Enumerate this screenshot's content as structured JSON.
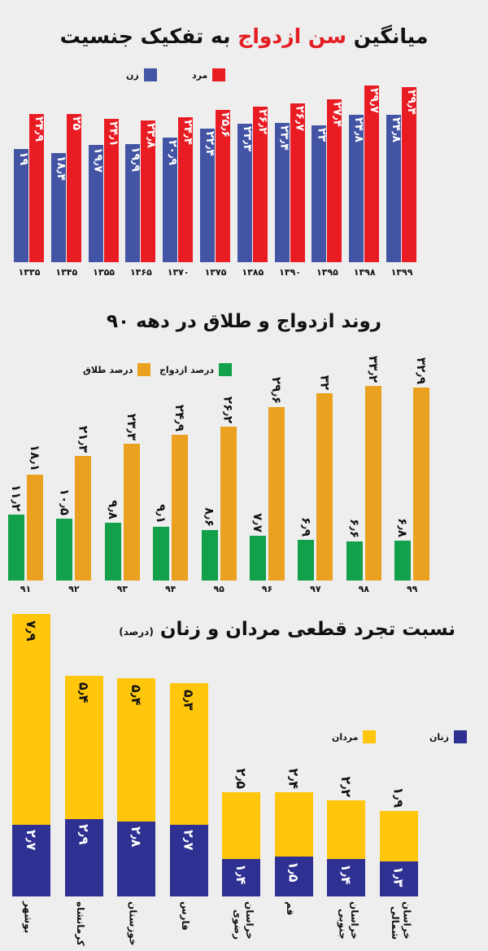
{
  "chart_data": [
    {
      "type": "bar",
      "title_pre": "میانگین",
      "title_highlight": "سن ازدواج",
      "title_post": "به تفکیک جنسیت",
      "categories": [
        "۱۳۳۵",
        "۱۳۴۵",
        "۱۳۵۵",
        "۱۳۶۵",
        "۱۳۷۰",
        "۱۳۷۵",
        "۱۳۸۵",
        "۱۳۹۰",
        "۱۳۹۵",
        "۱۳۹۸",
        "۱۳۹۹"
      ],
      "series": [
        {
          "name": "زن",
          "color": "#4254a3",
          "values": [
            19,
            18.4,
            19.7,
            19.9,
            20.9,
            22.4,
            23.3,
            23.4,
            23,
            24.8,
            24.8
          ],
          "labels": [
            "۱۹",
            "۱۸٫۴",
            "۱۹٫۷",
            "۱۹٫۹",
            "۲۰٫۹",
            "۲۲٫۴",
            "۲۳٫۳",
            "۲۳٫۴",
            "۲۳",
            "۲۴٫۸",
            "۲۴٫۸"
          ]
        },
        {
          "name": "مرد",
          "color": "#e91c24",
          "values": [
            24.9,
            25,
            24.1,
            23.8,
            24.4,
            25.6,
            26.2,
            26.7,
            27.4,
            29.7,
            29.4
          ],
          "labels": [
            "۲۴٫۹",
            "۲۵",
            "۲۴٫۱",
            "۲۳٫۸",
            "۲۴٫۴",
            "۲۵٫۶",
            "۲۶٫۲",
            "۲۶٫۷",
            "۲۷٫۴",
            "۲۹٫۷",
            "۲۹٫۴"
          ]
        }
      ],
      "legend": "top-left",
      "grid": false
    },
    {
      "type": "bar",
      "title": "روند ازدواج و طلاق در دهه ۹۰",
      "categories": [
        "۹۱",
        "۹۲",
        "۹۳",
        "۹۴",
        "۹۵",
        "۹۶",
        "۹۷",
        "۹۸",
        "۹۹"
      ],
      "series": [
        {
          "name": "درصد ازدواج",
          "color": "#12a04a",
          "values": [
            11.2,
            10.5,
            9.8,
            9.1,
            8.6,
            7.7,
            6.9,
            6.6,
            6.8
          ],
          "labels": [
            "۱۱٫۲",
            "۱۰٫۵",
            "۹٫۸",
            "۹٫۱",
            "۸٫۶",
            "۷٫۷",
            "۶٫۹",
            "۶٫۶",
            "۶٫۸"
          ]
        },
        {
          "name": "درصد طلاق",
          "color": "#e9a11f",
          "values": [
            18.1,
            21.3,
            23.3,
            24.9,
            26.2,
            29.6,
            32,
            33.2,
            32.9
          ],
          "labels": [
            "۱۸٫۱",
            "۲۱٫۳",
            "۲۳٫۳",
            "۲۴٫۹",
            "۲۶٫۲",
            "۲۹٫۶",
            "۳۲",
            "۳۳٫۲",
            "۳۲٫۹"
          ]
        }
      ],
      "legend": "top-left",
      "grid": false
    },
    {
      "type": "bar",
      "stacked": true,
      "title": "نسبت تجرد قطعی مردان و زنان",
      "title_unit": "(درصد)",
      "categories": [
        "بوشهر",
        "کرمانشاه",
        "خوزستان",
        "فارس",
        "خراسان\nرضوی",
        "قم",
        "خراسان\nجنوبی",
        "خراسان\nشمالی"
      ],
      "series": [
        {
          "name": "زنان",
          "color": "#2e3192",
          "values": [
            2.7,
            2.9,
            2.8,
            2.7,
            1.4,
            1.5,
            1.4,
            1.3
          ],
          "labels": [
            "۲٫۷",
            "۲٫۹",
            "۲٫۸",
            "۲٫۷",
            "۱٫۴",
            "۱٫۵",
            "۱٫۴",
            "۱٫۳"
          ]
        },
        {
          "name": "مردان",
          "color": "#ffc60b",
          "values": [
            7.9,
            5.4,
            5.4,
            5.3,
            2.5,
            2.4,
            2.2,
            1.9
          ],
          "labels": [
            "۷٫۹",
            "۵٫۴",
            "۵٫۴",
            "۵٫۳",
            "۲٫۵",
            "۲٫۴",
            "۲٫۲",
            "۱٫۹"
          ]
        }
      ],
      "legend": "right",
      "grid": false
    }
  ]
}
